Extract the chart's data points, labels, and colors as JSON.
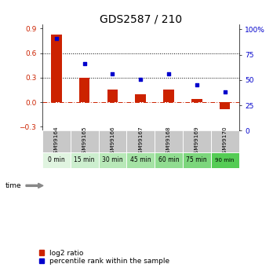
{
  "title": "GDS2587 / 210",
  "categories": [
    "GSM99164",
    "GSM99165",
    "GSM99166",
    "GSM99167",
    "GSM99168",
    "GSM99169",
    "GSM99170"
  ],
  "time_labels": [
    "0 min",
    "15 min",
    "30 min",
    "45 min",
    "60 min",
    "75 min",
    "90 min"
  ],
  "log2_ratio": [
    0.83,
    0.3,
    0.15,
    0.1,
    0.15,
    0.04,
    -0.09
  ],
  "percentile_rank": [
    91,
    66,
    56,
    51,
    56,
    45,
    38
  ],
  "bar_color": "#cc2200",
  "dot_color": "#0000cc",
  "ylim_left": [
    -0.35,
    0.95
  ],
  "ylim_right": [
    0,
    105
  ],
  "yticks_left": [
    -0.3,
    0.0,
    0.3,
    0.6,
    0.9
  ],
  "yticks_right": [
    0,
    25,
    50,
    75,
    100
  ],
  "hline_vals": [
    0.3,
    0.6
  ],
  "zero_line": 0.0,
  "time_colors": [
    "#e0f4e0",
    "#cceece",
    "#b8e8b8",
    "#a4e2a4",
    "#90dc90",
    "#7cd67c",
    "#55cc55"
  ],
  "gsm_bg_color": "#c8c8c8",
  "title_fontsize": 10,
  "tick_fontsize": 6.5,
  "legend_fontsize": 6.5
}
